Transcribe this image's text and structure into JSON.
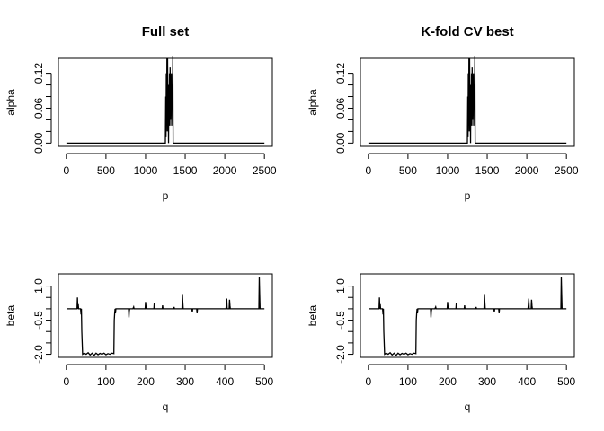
{
  "chart_data": [
    {
      "type": "line",
      "title": "Full set",
      "xlabel": "p",
      "ylabel": "alpha",
      "xlim": [
        0,
        2500
      ],
      "ylim": [
        0,
        0.14
      ],
      "xticks": [
        0,
        500,
        1000,
        1500,
        2000,
        2500
      ],
      "xtick_labels": [
        "0",
        "500",
        "1000",
        "1500",
        "2000",
        "2500"
      ],
      "yticks": [
        0,
        0.02,
        0.04,
        0.06,
        0.08,
        0.1,
        0.12
      ],
      "ytick_labels": [
        "0.00",
        "",
        "",
        "0.06",
        "",
        "",
        "0.12"
      ],
      "grid": false,
      "points": [
        [
          1,
          0
        ],
        [
          1250,
          0
        ],
        [
          1255,
          0.08
        ],
        [
          1258,
          0.01
        ],
        [
          1262,
          0.12
        ],
        [
          1266,
          0.03
        ],
        [
          1270,
          0.145
        ],
        [
          1274,
          0.02
        ],
        [
          1278,
          0.145
        ],
        [
          1282,
          0.04
        ],
        [
          1286,
          0.1
        ],
        [
          1290,
          0
        ],
        [
          1294,
          0.1
        ],
        [
          1298,
          0.05
        ],
        [
          1302,
          0.12
        ],
        [
          1306,
          0.03
        ],
        [
          1310,
          0.13
        ],
        [
          1314,
          0.04
        ],
        [
          1318,
          0.11
        ],
        [
          1322,
          0.06
        ],
        [
          1326,
          0.12
        ],
        [
          1330,
          0.03
        ],
        [
          1334,
          0.1
        ],
        [
          1340,
          0.06
        ],
        [
          1344,
          0.15
        ],
        [
          1348,
          0
        ],
        [
          2500,
          0
        ]
      ]
    },
    {
      "type": "line",
      "title": "K-fold CV best",
      "xlabel": "p",
      "ylabel": "alpha",
      "xlim": [
        0,
        2500
      ],
      "ylim": [
        0,
        0.14
      ],
      "xticks": [
        0,
        500,
        1000,
        1500,
        2000,
        2500
      ],
      "xtick_labels": [
        "0",
        "500",
        "1000",
        "1500",
        "2000",
        "2500"
      ],
      "yticks": [
        0,
        0.02,
        0.04,
        0.06,
        0.08,
        0.1,
        0.12
      ],
      "ytick_labels": [
        "0.00",
        "",
        "",
        "0.06",
        "",
        "",
        "0.12"
      ],
      "grid": false,
      "points": [
        [
          1,
          0
        ],
        [
          1250,
          0
        ],
        [
          1255,
          0.08
        ],
        [
          1258,
          0.01
        ],
        [
          1262,
          0.12
        ],
        [
          1266,
          0.03
        ],
        [
          1270,
          0.145
        ],
        [
          1274,
          0.02
        ],
        [
          1278,
          0.145
        ],
        [
          1282,
          0.04
        ],
        [
          1286,
          0.1
        ],
        [
          1290,
          0
        ],
        [
          1294,
          0.1
        ],
        [
          1298,
          0.05
        ],
        [
          1302,
          0.12
        ],
        [
          1306,
          0.03
        ],
        [
          1310,
          0.13
        ],
        [
          1314,
          0.04
        ],
        [
          1318,
          0.11
        ],
        [
          1322,
          0.06
        ],
        [
          1326,
          0.12
        ],
        [
          1330,
          0.03
        ],
        [
          1334,
          0.1
        ],
        [
          1340,
          0.06
        ],
        [
          1344,
          0.15
        ],
        [
          1348,
          0
        ],
        [
          2500,
          0
        ]
      ]
    },
    {
      "type": "line",
      "title": "",
      "xlabel": "q",
      "ylabel": "beta",
      "xlim": [
        0,
        500
      ],
      "ylim": [
        -2.0,
        1.4
      ],
      "xticks": [
        0,
        100,
        200,
        300,
        400,
        500
      ],
      "xtick_labels": [
        "0",
        "100",
        "200",
        "300",
        "400",
        "500"
      ],
      "yticks": [
        -2.0,
        -1.5,
        -1.0,
        -0.5,
        0,
        0.5,
        1.0
      ],
      "ytick_labels": [
        "-2.0",
        "",
        "",
        "-0.5",
        "",
        "",
        "1.0"
      ],
      "grid": false,
      "points": [
        [
          1,
          0
        ],
        [
          27,
          0
        ],
        [
          28,
          0.5
        ],
        [
          29,
          0
        ],
        [
          30,
          0.2
        ],
        [
          31,
          0
        ],
        [
          36,
          0
        ],
        [
          37,
          -0.25
        ],
        [
          38,
          0
        ],
        [
          39,
          -1.0
        ],
        [
          41,
          -2.0
        ],
        [
          45,
          -1.95
        ],
        [
          50,
          -2.0
        ],
        [
          55,
          -1.93
        ],
        [
          60,
          -2.03
        ],
        [
          65,
          -1.95
        ],
        [
          70,
          -2.05
        ],
        [
          75,
          -1.95
        ],
        [
          80,
          -2.02
        ],
        [
          85,
          -1.96
        ],
        [
          90,
          -2.0
        ],
        [
          95,
          -1.95
        ],
        [
          100,
          -2.02
        ],
        [
          105,
          -1.97
        ],
        [
          110,
          -2.0
        ],
        [
          115,
          -1.95
        ],
        [
          120,
          -1.97
        ],
        [
          121,
          -0.5
        ],
        [
          122,
          -0.2
        ],
        [
          123,
          0
        ],
        [
          124,
          -0.2
        ],
        [
          125,
          0
        ],
        [
          157,
          0
        ],
        [
          158,
          -0.38
        ],
        [
          159,
          -0.1
        ],
        [
          160,
          0
        ],
        [
          168,
          0
        ],
        [
          170,
          0.08
        ],
        [
          171,
          0
        ],
        [
          199,
          0
        ],
        [
          200,
          0.3
        ],
        [
          201,
          0.1
        ],
        [
          202,
          0
        ],
        [
          221,
          0
        ],
        [
          222,
          0.25
        ],
        [
          223,
          0
        ],
        [
          242,
          0
        ],
        [
          243,
          0.15
        ],
        [
          244,
          0
        ],
        [
          271,
          0
        ],
        [
          272,
          0.08
        ],
        [
          273,
          0
        ],
        [
          292,
          0
        ],
        [
          293,
          0.65
        ],
        [
          294,
          0.3
        ],
        [
          295,
          0
        ],
        [
          317,
          0
        ],
        [
          318,
          -0.15
        ],
        [
          319,
          0
        ],
        [
          329,
          0
        ],
        [
          330,
          -0.2
        ],
        [
          331,
          0
        ],
        [
          403,
          0
        ],
        [
          404,
          0.2
        ],
        [
          405,
          0.45
        ],
        [
          406,
          0
        ],
        [
          411,
          0
        ],
        [
          412,
          0.4
        ],
        [
          413,
          0.15
        ],
        [
          414,
          0
        ],
        [
          486,
          0
        ],
        [
          487,
          1.4
        ],
        [
          488,
          0.65
        ],
        [
          489,
          0
        ],
        [
          500,
          0
        ]
      ]
    },
    {
      "type": "line",
      "title": "",
      "xlabel": "q",
      "ylabel": "beta",
      "xlim": [
        0,
        500
      ],
      "ylim": [
        -2.0,
        1.4
      ],
      "xticks": [
        0,
        100,
        200,
        300,
        400,
        500
      ],
      "xtick_labels": [
        "0",
        "100",
        "200",
        "300",
        "400",
        "500"
      ],
      "yticks": [
        -2.0,
        -1.5,
        -1.0,
        -0.5,
        0,
        0.5,
        1.0
      ],
      "ytick_labels": [
        "-2.0",
        "",
        "",
        "-0.5",
        "",
        "",
        "1.0"
      ],
      "grid": false,
      "points": [
        [
          1,
          0
        ],
        [
          27,
          0
        ],
        [
          28,
          0.5
        ],
        [
          29,
          0
        ],
        [
          30,
          0.2
        ],
        [
          31,
          0
        ],
        [
          36,
          0
        ],
        [
          37,
          -0.25
        ],
        [
          38,
          0
        ],
        [
          39,
          -1.0
        ],
        [
          41,
          -2.0
        ],
        [
          45,
          -1.95
        ],
        [
          50,
          -2.0
        ],
        [
          55,
          -1.93
        ],
        [
          60,
          -2.03
        ],
        [
          65,
          -1.95
        ],
        [
          70,
          -2.05
        ],
        [
          75,
          -1.95
        ],
        [
          80,
          -2.02
        ],
        [
          85,
          -1.96
        ],
        [
          90,
          -2.0
        ],
        [
          95,
          -1.95
        ],
        [
          100,
          -2.02
        ],
        [
          105,
          -1.97
        ],
        [
          110,
          -2.0
        ],
        [
          115,
          -1.95
        ],
        [
          120,
          -1.97
        ],
        [
          121,
          -0.5
        ],
        [
          122,
          -0.2
        ],
        [
          123,
          0
        ],
        [
          124,
          -0.2
        ],
        [
          125,
          0
        ],
        [
          157,
          0
        ],
        [
          158,
          -0.38
        ],
        [
          159,
          -0.1
        ],
        [
          160,
          0
        ],
        [
          168,
          0
        ],
        [
          170,
          0.08
        ],
        [
          171,
          0
        ],
        [
          199,
          0
        ],
        [
          200,
          0.3
        ],
        [
          201,
          0.1
        ],
        [
          202,
          0
        ],
        [
          221,
          0
        ],
        [
          222,
          0.25
        ],
        [
          223,
          0
        ],
        [
          242,
          0
        ],
        [
          243,
          0.15
        ],
        [
          244,
          0
        ],
        [
          271,
          0
        ],
        [
          272,
          0.08
        ],
        [
          273,
          0
        ],
        [
          292,
          0
        ],
        [
          293,
          0.65
        ],
        [
          294,
          0.3
        ],
        [
          295,
          0
        ],
        [
          317,
          0
        ],
        [
          318,
          -0.15
        ],
        [
          319,
          0
        ],
        [
          329,
          0
        ],
        [
          330,
          -0.2
        ],
        [
          331,
          0
        ],
        [
          403,
          0
        ],
        [
          404,
          0.2
        ],
        [
          405,
          0.45
        ],
        [
          406,
          0
        ],
        [
          411,
          0
        ],
        [
          412,
          0.4
        ],
        [
          413,
          0.15
        ],
        [
          414,
          0
        ],
        [
          486,
          0
        ],
        [
          487,
          1.4
        ],
        [
          488,
          0.65
        ],
        [
          489,
          0
        ],
        [
          500,
          0
        ]
      ]
    }
  ]
}
